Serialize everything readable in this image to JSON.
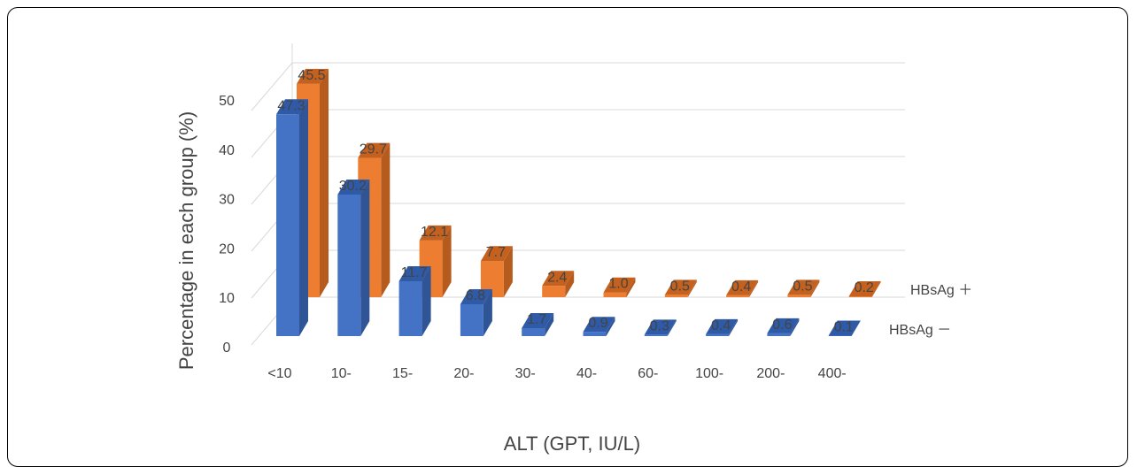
{
  "chart_data": {
    "type": "bar",
    "style": "3d-clustered-depth",
    "title": "",
    "xlabel": "ALT (GPT, IU/L)",
    "ylabel": "Percentage in each group (%)",
    "ylim": [
      0,
      50
    ],
    "yticks": [
      "0",
      "10",
      "20",
      "30",
      "40",
      "50"
    ],
    "categories": [
      "<10",
      "10-",
      "15-",
      "20-",
      "30-",
      "40-",
      "60-",
      "100-",
      "200-",
      "400-"
    ],
    "grid": true,
    "series": [
      {
        "name": "HBsAg －",
        "values": [
          47.3,
          30.2,
          11.7,
          6.8,
          1.7,
          0.9,
          0.3,
          0.4,
          0.6,
          0.1
        ],
        "labels": [
          "47.3",
          "30.2",
          "11.7",
          "6.8",
          "1.7",
          "0.9",
          "0.3",
          "0.4",
          "0.6",
          "0.1"
        ],
        "color": "#4472C4",
        "side_color": "#2F5597",
        "top_color": "#2E5AA8"
      },
      {
        "name": "HBsAg ＋",
        "values": [
          45.5,
          29.7,
          12.1,
          7.7,
          2.4,
          1.0,
          0.5,
          0.4,
          0.5,
          0.2
        ],
        "labels": [
          "45.5",
          "29.7",
          "12.1",
          "7.7",
          "2.4",
          "1.0",
          "0.5",
          "0.4",
          "0.5",
          "0.2"
        ],
        "color": "#ED7D31",
        "side_color": "#B65B1E",
        "top_color": "#C5611E"
      }
    ]
  }
}
